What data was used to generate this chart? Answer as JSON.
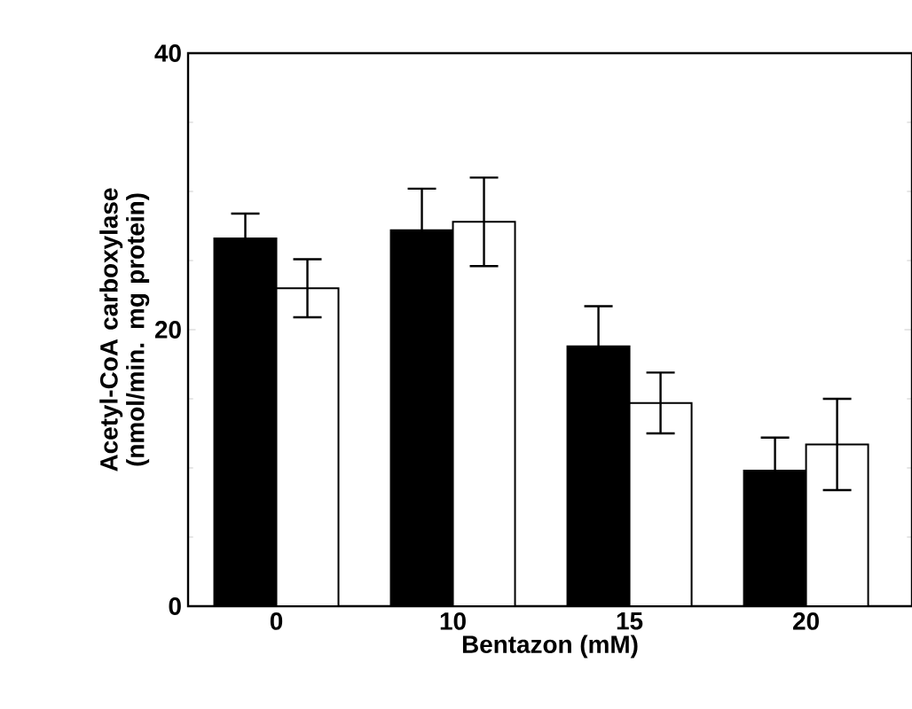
{
  "chart_data": {
    "type": "bar",
    "xlabel": "Bentazon (mM)",
    "ylabel": "Acetyl-CoA carboxylase (nmol/min. mg protein)",
    "categories": [
      "0",
      "10",
      "15",
      "20"
    ],
    "series": [
      {
        "color": "#000000",
        "values": [
          26.6,
          27.2,
          18.8,
          9.8
        ],
        "errors": [
          1.8,
          3.0,
          2.9,
          2.4
        ]
      },
      {
        "color": "#ffffff",
        "values": [
          23.0,
          27.8,
          14.7,
          11.7
        ],
        "errors": [
          2.1,
          3.2,
          2.2,
          3.3
        ]
      }
    ],
    "ylim": [
      0,
      40
    ],
    "yticks": [
      0,
      20,
      40
    ],
    "grid": false
  }
}
